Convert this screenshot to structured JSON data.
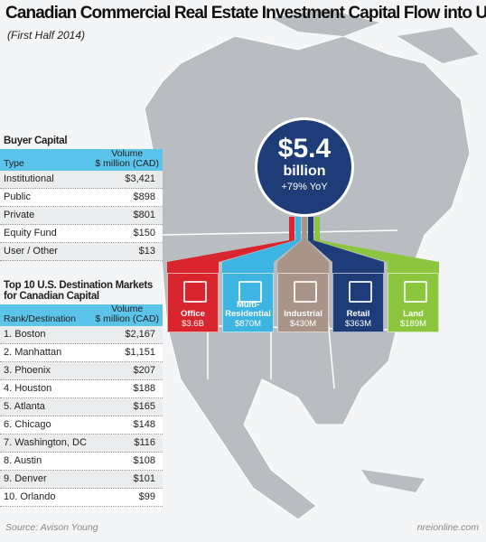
{
  "header": {
    "title": "Canadian Commercial Real Estate Investment Capital Flow into U.S.",
    "subtitle": "(First Half 2014)"
  },
  "buyer_capital": {
    "title": "Buyer Capital",
    "columns": [
      "Type",
      [
        "Volume",
        "$ million (CAD)"
      ]
    ],
    "rows": [
      [
        "Institutional",
        "$3,421"
      ],
      [
        "Public",
        "$898"
      ],
      [
        "Private",
        "$801"
      ],
      [
        "Equity Fund",
        "$150"
      ],
      [
        "User / Other",
        "$13"
      ]
    ]
  },
  "total": {
    "amount": "$5.4",
    "unit": "billion",
    "change": "+79% YoY"
  },
  "sectors": [
    {
      "label": "Office",
      "value": "$3.6B",
      "color": "#d9262e"
    },
    {
      "label": "Multi-Residential",
      "value": "$870M",
      "color": "#3db4e2"
    },
    {
      "label": "Industrial",
      "value": "$430M",
      "color": "#a89488"
    },
    {
      "label": "Retail",
      "value": "$363M",
      "color": "#1d3c78"
    },
    {
      "label": "Land",
      "value": "$189M",
      "color": "#8cc63e"
    }
  ],
  "top_markets": {
    "title": "Top 10 U.S. Destination Markets for Canadian Capital",
    "columns": [
      "Rank/Destination",
      [
        "Volume",
        "$ million (CAD)"
      ]
    ],
    "rows": [
      [
        "1. Boston",
        "$2,167"
      ],
      [
        "2. Manhattan",
        "$1,151"
      ],
      [
        "3. Phoenix",
        "$207"
      ],
      [
        "4. Houston",
        "$188"
      ],
      [
        "5. Atlanta",
        "$165"
      ],
      [
        "6. Chicago",
        "$148"
      ],
      [
        "7. Washington, DC",
        "$116"
      ],
      [
        "8. Austin",
        "$108"
      ],
      [
        "9. Denver",
        "$101"
      ],
      [
        "10. Orlando",
        "$99"
      ]
    ]
  },
  "footer": {
    "source": "Source: Avison Young",
    "site": "nreionline.com"
  }
}
